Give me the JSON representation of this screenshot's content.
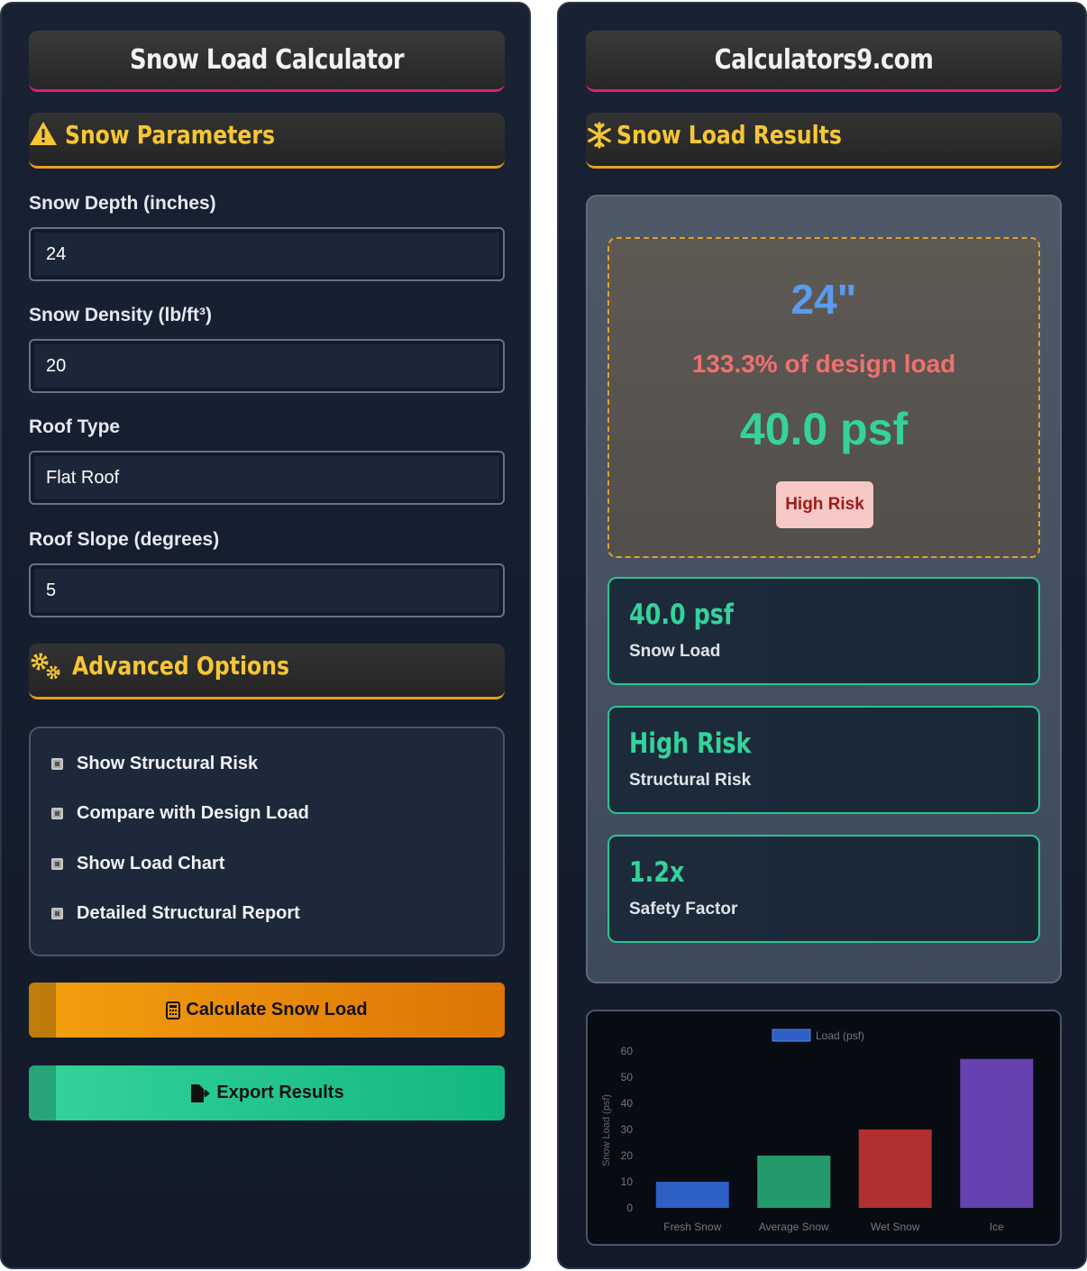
{
  "left": {
    "title": "Snow Load Calculator",
    "params_section": "Snow Parameters",
    "fields": {
      "snow_depth_label": "Snow Depth (inches)",
      "snow_depth_value": "24",
      "snow_density_label": "Snow Density (lb/ft³)",
      "snow_density_value": "20",
      "roof_type_label": "Roof Type",
      "roof_type_value": "Flat Roof",
      "roof_slope_label": "Roof Slope (degrees)",
      "roof_slope_value": "5"
    },
    "advanced_section": "Advanced Options",
    "options": [
      "Show Structural Risk",
      "Compare with Design Load",
      "Show Load Chart",
      "Detailed Structural Report"
    ],
    "calculate_label": "Calculate Snow Load",
    "export_label": "Export Results"
  },
  "right": {
    "title": "Calculators9.com",
    "results_section": "Snow Load Results",
    "hero": {
      "depth": "24\"",
      "percent": "133.3% of design load",
      "load": "40.0 psf",
      "risk_badge": "High Risk"
    },
    "cards": [
      {
        "value": "40.0 psf",
        "label": "Snow Load"
      },
      {
        "value": "High Risk",
        "label": "Structural Risk"
      },
      {
        "value": "1.2x",
        "label": "Safety Factor"
      }
    ]
  },
  "colors": {
    "accent_yellow": "#f7c634",
    "accent_green": "#34d39b",
    "accent_pink": "#e21e74",
    "accent_orange": "#e8a020"
  },
  "chart_data": {
    "type": "bar",
    "title": "",
    "legend": "Load (psf)",
    "legend_position": "top",
    "ylabel": "Snow Load (psf)",
    "xlabel": "",
    "categories": [
      "Fresh Snow",
      "Average Snow",
      "Wet Snow",
      "Ice"
    ],
    "values": [
      10,
      20,
      30,
      57
    ],
    "colors": [
      "#2d5fc4",
      "#249a6c",
      "#b03030",
      "#6642b0"
    ],
    "ylim": [
      0,
      60
    ],
    "yticks": [
      0,
      10,
      20,
      30,
      40,
      50,
      60
    ],
    "grid": false
  }
}
